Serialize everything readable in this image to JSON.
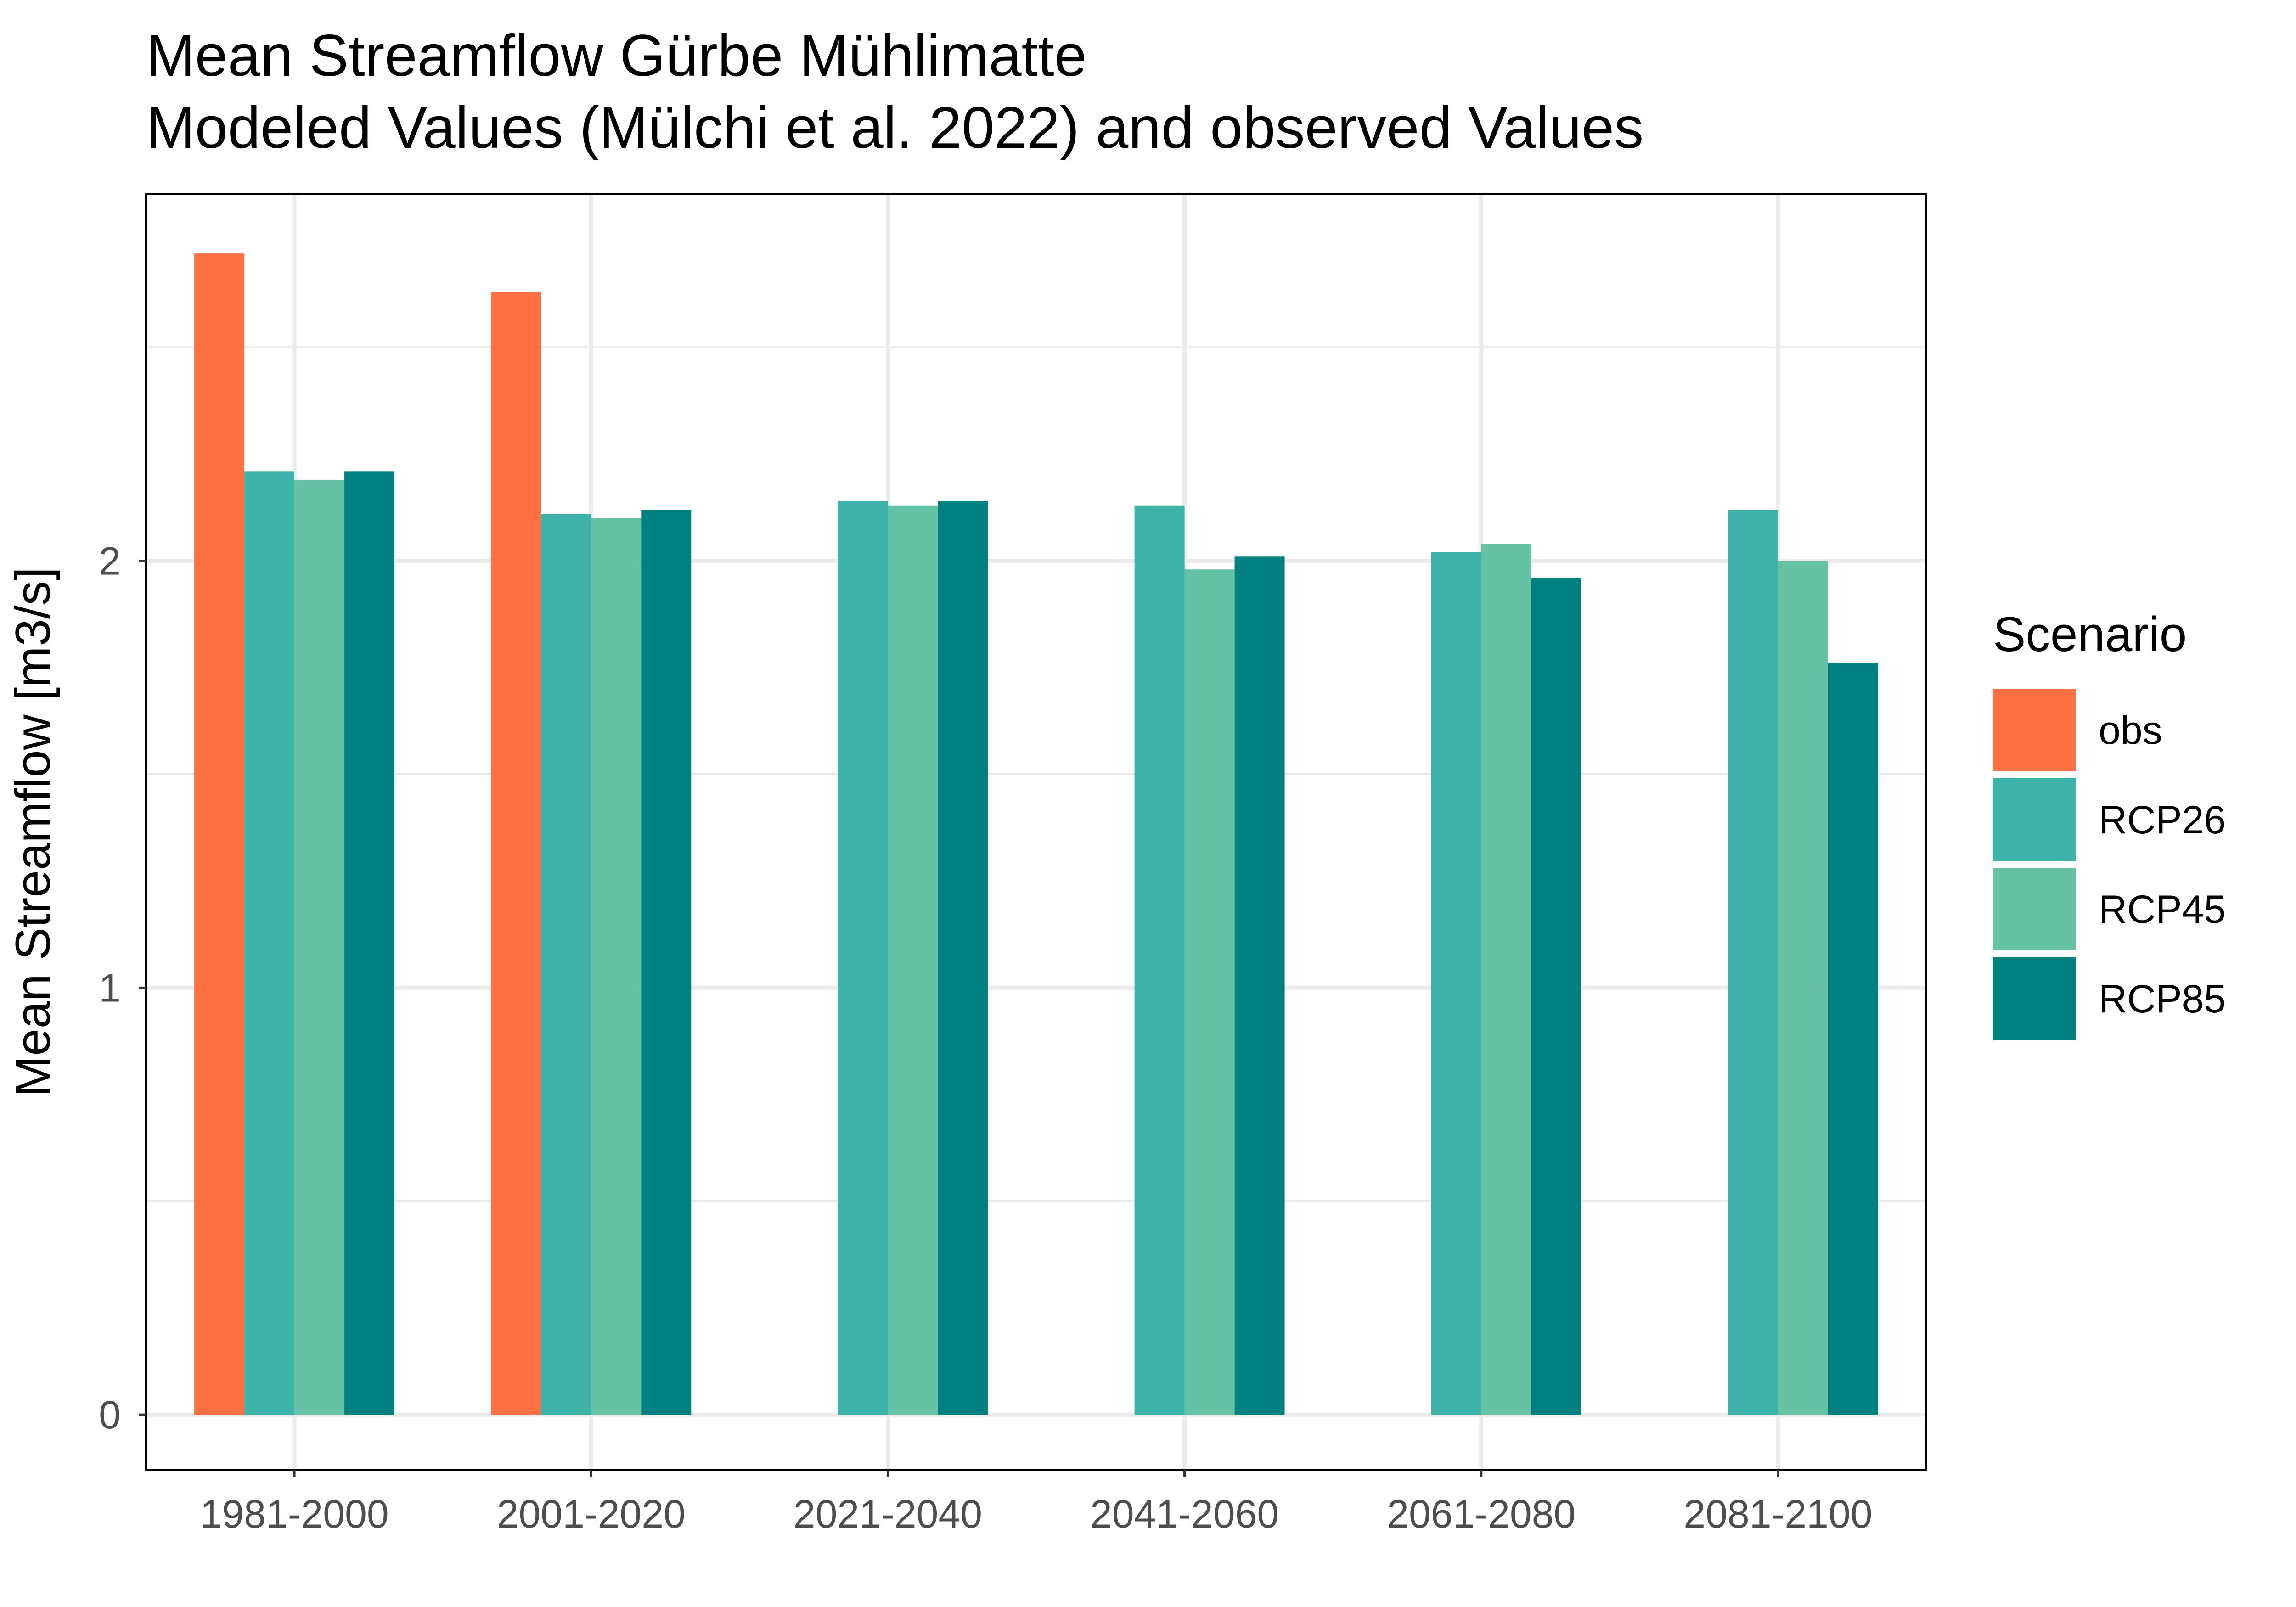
{
  "chart_data": {
    "type": "bar",
    "title": "Mean Streamflow Gürbe Mühlimatte",
    "subtitle": "Modeled Values (Mülchi et al. 2022) and observed Values",
    "xlabel": "",
    "ylabel": "Mean Streamflow [m3/s]",
    "categories": [
      "1981-2000",
      "2001-2020",
      "2021-2040",
      "2041-2060",
      "2061-2080",
      "2081-2100"
    ],
    "y_ticks": [
      0,
      1,
      2
    ],
    "ylim": [
      -0.13,
      2.86
    ],
    "grid": true,
    "legend": {
      "title": "Scenario",
      "position": "right"
    },
    "series": [
      {
        "name": "obs",
        "color": "#FF7043",
        "values": [
          2.72,
          2.63,
          null,
          null,
          null,
          null
        ]
      },
      {
        "name": "RCP26",
        "color": "#3EB3A9",
        "values": [
          2.21,
          2.11,
          2.14,
          2.13,
          2.02,
          2.12
        ]
      },
      {
        "name": "RCP45",
        "color": "#66C2A5",
        "values": [
          2.19,
          2.1,
          2.13,
          1.98,
          2.04,
          2.0
        ]
      },
      {
        "name": "RCP85",
        "color": "#008080",
        "values": [
          2.21,
          2.12,
          2.14,
          2.01,
          1.96,
          1.76
        ]
      }
    ]
  }
}
